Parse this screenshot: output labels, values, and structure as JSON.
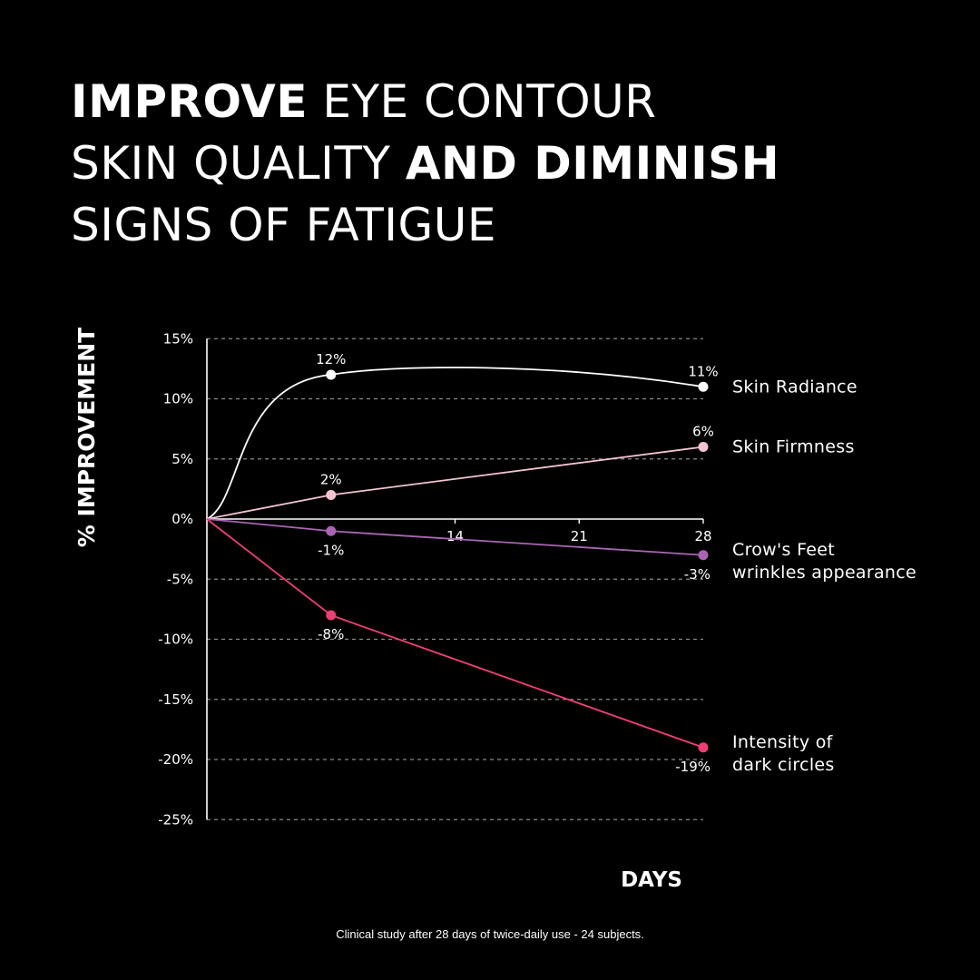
{
  "headline": {
    "line1_bold": "IMPROVE",
    "line1_rest": " EYE CONTOUR",
    "line2_rest": "SKIN QUALITY ",
    "line2_bold": "AND DIMINISH",
    "line3_rest": "SIGNS OF FATIGUE"
  },
  "chart_data": {
    "type": "line",
    "ylabel": "% IMPROVEMENT",
    "xlabel": "DAYS",
    "ylim": [
      -25,
      15
    ],
    "xlim": [
      0,
      28
    ],
    "y_ticks": [
      15,
      10,
      5,
      0,
      -5,
      -10,
      -15,
      -20,
      -25
    ],
    "y_tick_labels": [
      "15%",
      "10%",
      "5%",
      "0%",
      "-5%",
      "-10%",
      "-15%",
      "-20%",
      "-25%"
    ],
    "x_ticks": [
      14,
      21,
      28
    ],
    "x_tick_labels": [
      "14",
      "21",
      "28"
    ],
    "grid": "horizontal dashed",
    "legend": "right, inline labels",
    "series": [
      {
        "name": "Skin Radiance",
        "label_lines": [
          "Skin Radiance"
        ],
        "color": "#ffffff",
        "x": [
          0,
          7,
          28
        ],
        "y": [
          0,
          12,
          11
        ],
        "point_labels": [
          "",
          "12%",
          "11%"
        ],
        "smooth": true
      },
      {
        "name": "Skin Firmness",
        "label_lines": [
          "Skin Firmness"
        ],
        "color": "#f2c4d0",
        "x": [
          0,
          7,
          28
        ],
        "y": [
          0,
          2,
          6
        ],
        "point_labels": [
          "",
          "2%",
          "6%"
        ],
        "smooth": false
      },
      {
        "name": "Crow's Feet wrinkles appearance",
        "label_lines": [
          "Crow's Feet",
          "wrinkles appearance"
        ],
        "color": "#a866b2",
        "x": [
          0,
          7,
          28
        ],
        "y": [
          0,
          -1,
          -3
        ],
        "point_labels": [
          "",
          "-1%",
          "-3%"
        ],
        "smooth": false
      },
      {
        "name": "Intensity of dark circles",
        "label_lines": [
          "Intensity of",
          "dark circles"
        ],
        "color": "#ee3f74",
        "x": [
          0,
          7,
          28
        ],
        "y": [
          0,
          -8,
          -19
        ],
        "point_labels": [
          "",
          "-8%",
          "-19%"
        ],
        "smooth": false
      }
    ]
  },
  "footnote": "Clinical study after 28 days of twice-daily use - 24 subjects."
}
